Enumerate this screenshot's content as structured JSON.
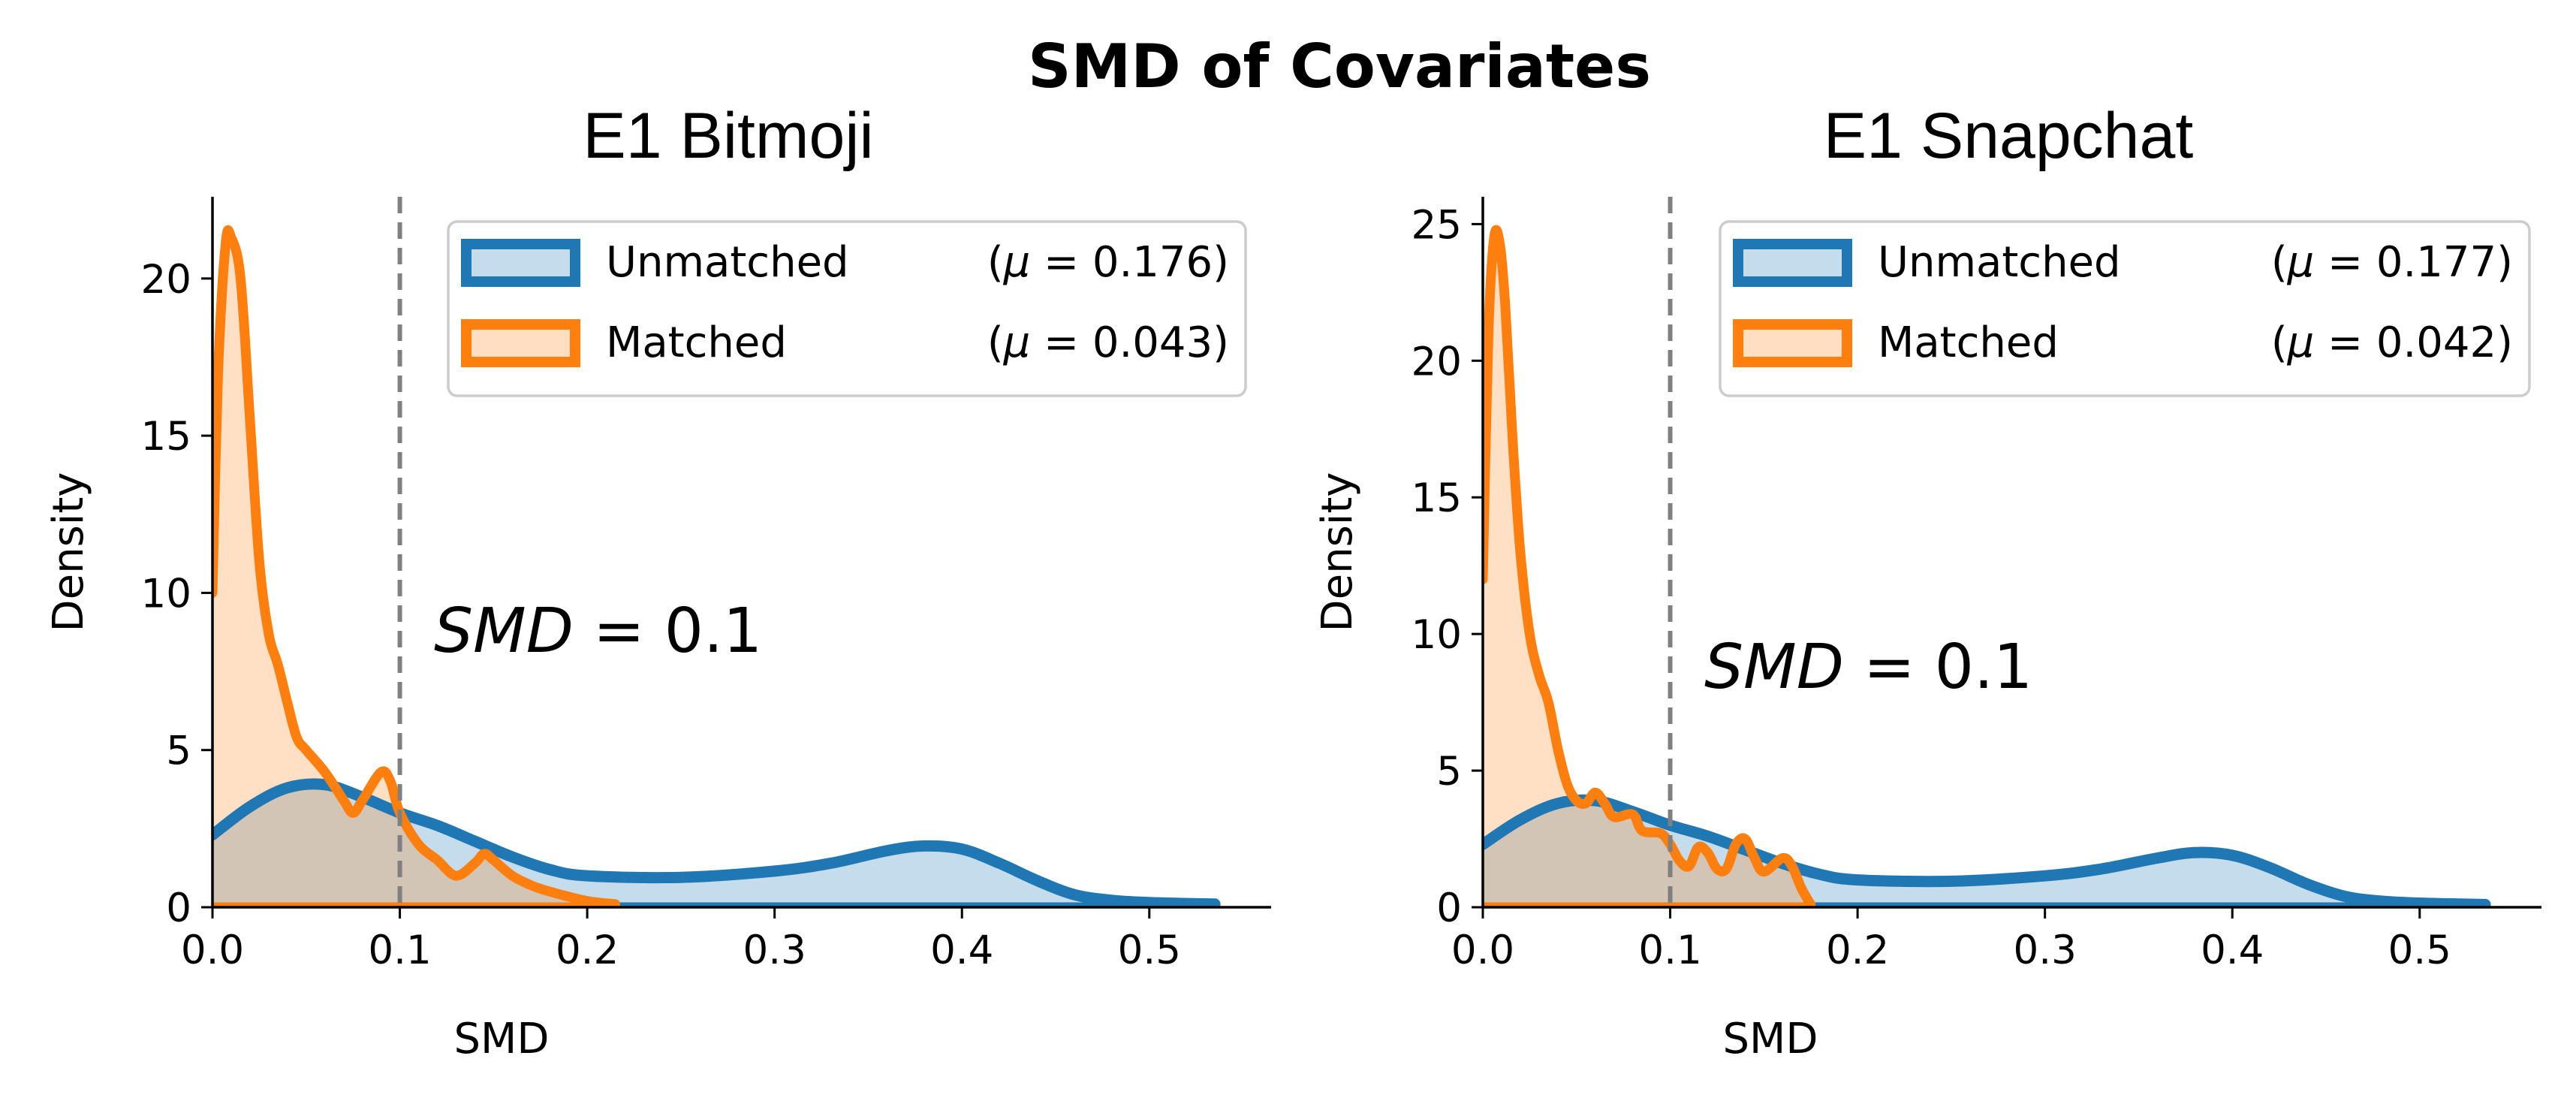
{
  "figure_title": "SMD of Covariates",
  "colors": {
    "unmatched": "#1f77b4",
    "matched": "#ff7f0e",
    "threshold_line": "#808080",
    "overlap_fill": "#8b7f74"
  },
  "chart_data": [
    {
      "type": "area",
      "title": "E1 Bitmoji",
      "xlabel": "SMD",
      "ylabel": "Density",
      "xlim": [
        0,
        0.565
      ],
      "ylim": [
        0,
        22.6
      ],
      "xticks": [
        0.0,
        0.1,
        0.2,
        0.3,
        0.4,
        0.5
      ],
      "xtick_labels": [
        "0.0",
        "0.1",
        "0.2",
        "0.3",
        "0.4",
        "0.5"
      ],
      "yticks": [
        0,
        5,
        10,
        15,
        20
      ],
      "ytick_labels": [
        "0",
        "5",
        "10",
        "15",
        "20"
      ],
      "threshold": 0.1,
      "threshold_label": "SMD = 0.1",
      "legend_position": "top-right",
      "grid": false,
      "series": [
        {
          "name": "Unmatched",
          "legend_label": "Unmatched",
          "legend_stat": "(μ = 0.176)",
          "points": [
            [
              0,
              2.3
            ],
            [
              0.02,
              3.2
            ],
            [
              0.04,
              3.8
            ],
            [
              0.06,
              3.9
            ],
            [
              0.08,
              3.5
            ],
            [
              0.1,
              3.0
            ],
            [
              0.12,
              2.6
            ],
            [
              0.14,
              2.1
            ],
            [
              0.16,
              1.6
            ],
            [
              0.18,
              1.2
            ],
            [
              0.2,
              1.0
            ],
            [
              0.25,
              0.95
            ],
            [
              0.3,
              1.15
            ],
            [
              0.33,
              1.4
            ],
            [
              0.36,
              1.8
            ],
            [
              0.38,
              1.95
            ],
            [
              0.4,
              1.85
            ],
            [
              0.42,
              1.4
            ],
            [
              0.44,
              0.85
            ],
            [
              0.46,
              0.4
            ],
            [
              0.48,
              0.22
            ],
            [
              0.5,
              0.15
            ],
            [
              0.535,
              0.1
            ]
          ]
        },
        {
          "name": "Matched",
          "legend_label": "Matched",
          "legend_stat": "(μ = 0.043)",
          "points": [
            [
              0,
              10
            ],
            [
              0.003,
              17
            ],
            [
              0.007,
              21.1
            ],
            [
              0.01,
              21.3
            ],
            [
              0.015,
              20
            ],
            [
              0.02,
              15.5
            ],
            [
              0.025,
              11
            ],
            [
              0.03,
              8.7
            ],
            [
              0.035,
              7.7
            ],
            [
              0.04,
              6.5
            ],
            [
              0.045,
              5.4
            ],
            [
              0.05,
              5.0
            ],
            [
              0.06,
              4.3
            ],
            [
              0.07,
              3.4
            ],
            [
              0.075,
              3.0
            ],
            [
              0.08,
              3.4
            ],
            [
              0.09,
              4.3
            ],
            [
              0.095,
              4.0
            ],
            [
              0.1,
              3.0
            ],
            [
              0.11,
              2.0
            ],
            [
              0.12,
              1.5
            ],
            [
              0.13,
              1.0
            ],
            [
              0.14,
              1.4
            ],
            [
              0.145,
              1.7
            ],
            [
              0.15,
              1.5
            ],
            [
              0.16,
              1.0
            ],
            [
              0.17,
              0.7
            ],
            [
              0.18,
              0.5
            ],
            [
              0.2,
              0.2
            ],
            [
              0.215,
              0.1
            ]
          ]
        }
      ]
    },
    {
      "type": "area",
      "title": "E1 Snapchat",
      "xlabel": "SMD",
      "ylabel": "Density",
      "xlim": [
        0,
        0.565
      ],
      "ylim": [
        0,
        26
      ],
      "xticks": [
        0.0,
        0.1,
        0.2,
        0.3,
        0.4,
        0.5
      ],
      "xtick_labels": [
        "0.0",
        "0.1",
        "0.2",
        "0.3",
        "0.4",
        "0.5"
      ],
      "yticks": [
        0,
        5,
        10,
        15,
        20,
        25
      ],
      "ytick_labels": [
        "0",
        "5",
        "10",
        "15",
        "20",
        "25"
      ],
      "threshold": 0.1,
      "threshold_label": "SMD = 0.1",
      "legend_position": "top-right",
      "grid": false,
      "series": [
        {
          "name": "Unmatched",
          "legend_label": "Unmatched",
          "legend_stat": "(μ = 0.177)",
          "points": [
            [
              0,
              2.3
            ],
            [
              0.02,
              3.2
            ],
            [
              0.04,
              3.8
            ],
            [
              0.06,
              3.9
            ],
            [
              0.08,
              3.5
            ],
            [
              0.1,
              3.0
            ],
            [
              0.12,
              2.6
            ],
            [
              0.14,
              2.1
            ],
            [
              0.16,
              1.6
            ],
            [
              0.18,
              1.2
            ],
            [
              0.2,
              1.0
            ],
            [
              0.25,
              0.95
            ],
            [
              0.3,
              1.15
            ],
            [
              0.33,
              1.4
            ],
            [
              0.36,
              1.8
            ],
            [
              0.38,
              2.0
            ],
            [
              0.4,
              1.9
            ],
            [
              0.42,
              1.45
            ],
            [
              0.44,
              0.85
            ],
            [
              0.46,
              0.4
            ],
            [
              0.48,
              0.22
            ],
            [
              0.5,
              0.15
            ],
            [
              0.535,
              0.1
            ]
          ]
        },
        {
          "name": "Matched",
          "legend_label": "Matched",
          "legend_stat": "(μ = 0.042)",
          "points": [
            [
              0,
              12
            ],
            [
              0.003,
              21
            ],
            [
              0.006,
              24.5
            ],
            [
              0.009,
              24.3
            ],
            [
              0.012,
              22
            ],
            [
              0.016,
              17
            ],
            [
              0.02,
              13
            ],
            [
              0.025,
              10
            ],
            [
              0.03,
              8.5
            ],
            [
              0.035,
              7.5
            ],
            [
              0.04,
              5.8
            ],
            [
              0.045,
              4.5
            ],
            [
              0.05,
              3.9
            ],
            [
              0.055,
              3.8
            ],
            [
              0.06,
              4.2
            ],
            [
              0.065,
              3.8
            ],
            [
              0.07,
              3.3
            ],
            [
              0.08,
              3.4
            ],
            [
              0.085,
              2.8
            ],
            [
              0.095,
              2.7
            ],
            [
              0.1,
              2.3
            ],
            [
              0.105,
              1.7
            ],
            [
              0.11,
              1.5
            ],
            [
              0.115,
              2.2
            ],
            [
              0.12,
              2.0
            ],
            [
              0.125,
              1.4
            ],
            [
              0.13,
              1.4
            ],
            [
              0.135,
              2.3
            ],
            [
              0.14,
              2.5
            ],
            [
              0.145,
              1.8
            ],
            [
              0.15,
              1.3
            ],
            [
              0.16,
              1.8
            ],
            [
              0.165,
              1.5
            ],
            [
              0.17,
              0.7
            ],
            [
              0.175,
              0.1
            ]
          ]
        }
      ]
    }
  ]
}
